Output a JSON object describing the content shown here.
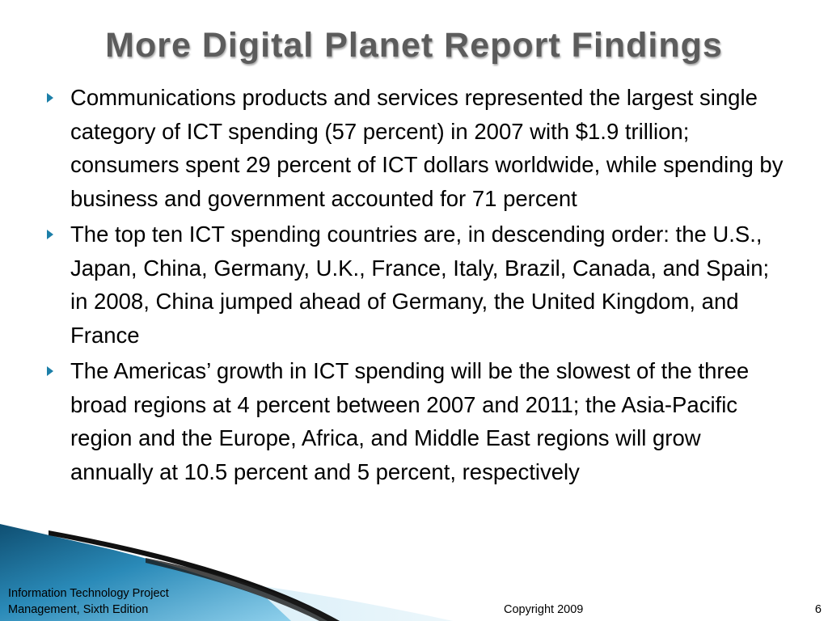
{
  "slide": {
    "title": "More Digital Planet Report Findings",
    "bullets": [
      {
        "text": "Communications products and services represented the largest single category of ICT spending (57 percent) in 2007 with $1.9 trillion; consumers spent 29 percent of ICT dollars worldwide, while spending by business and government accounted for 71 percent"
      },
      {
        "text": "The top ten ICT spending countries are, in descending order: the U.S., Japan, China, Germany, U.K., France, Italy, Brazil, Canada, and Spain; in 2008, China jumped ahead of Germany, the United Kingdom, and France"
      },
      {
        "text": "The Americas’ growth in ICT spending will be the slowest of the three broad regions at 4 percent between 2007 and 2011; the Asia-Pacific region and the Europe, Africa, and Middle East regions will grow annually at 10.5 percent and 5 percent, respectively"
      }
    ],
    "bullet_color": "#1c7fa8"
  },
  "footer": {
    "left_line1": "Information Technology Project",
    "left_line2": "Management, Sixth Edition",
    "center": "Copyright 2009",
    "page_number": "6"
  }
}
